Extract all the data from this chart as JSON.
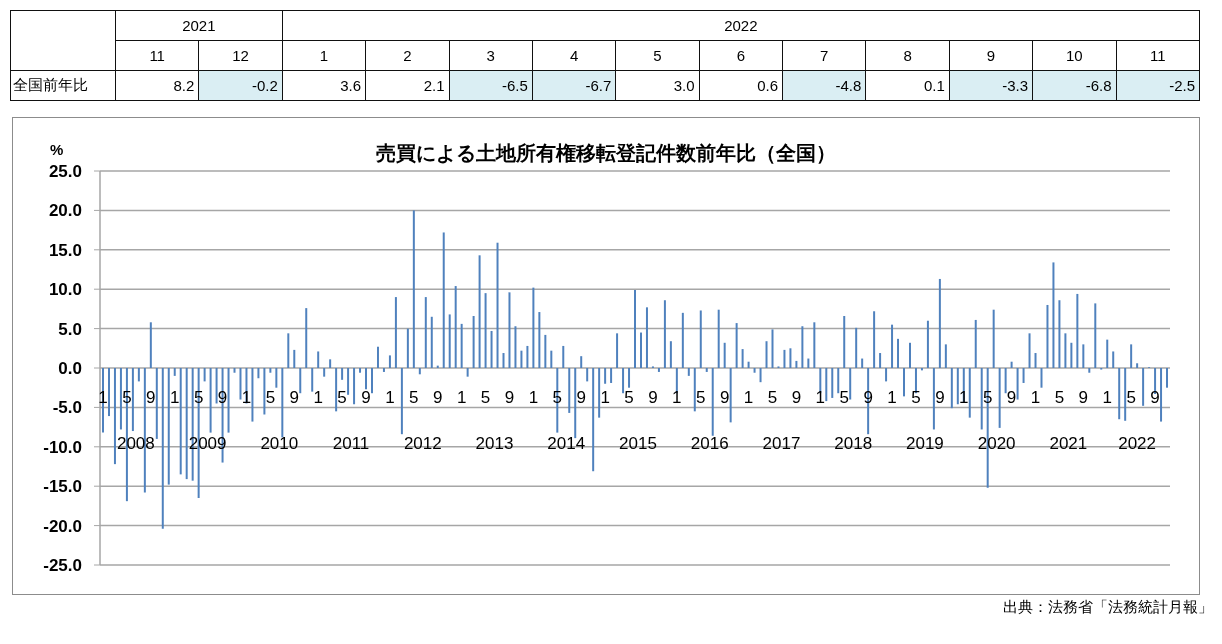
{
  "chart_data": [
    {
      "type": "heatmap",
      "categories": [
        "11",
        "12",
        "1",
        "2",
        "3",
        "4",
        "5",
        "6",
        "7",
        "8",
        "9",
        "10",
        "11"
      ],
      "annotations": [
        "2021",
        "2022"
      ],
      "y_categories": [
        "全国前年比"
      ],
      "cells": [
        [
          8.2,
          -0.2,
          3.6,
          2.1,
          -6.5,
          -6.7,
          3.0,
          0.6,
          -4.8,
          0.1,
          -3.3,
          -6.8,
          -2.5
        ]
      ],
      "cell_labels": [
        [
          "8.2",
          "-0.2",
          "3.6",
          "2.1",
          "-6.5",
          "-6.7",
          "3.0",
          "0.6",
          "-4.8",
          "0.1",
          "-3.3",
          "-6.8",
          "-2.5"
        ]
      ]
    },
    {
      "type": "bar",
      "title": "売買による土地所有権移転登記件数前年比（全国）",
      "ylabel": "%",
      "annotations": [
        "出典：法務省「法務統計月報」"
      ],
      "x": [
        "2008-01",
        "2008-02",
        "2008-03",
        "2008-04",
        "2008-05",
        "2008-06",
        "2008-07",
        "2008-08",
        "2008-09",
        "2008-10",
        "2008-11",
        "2008-12",
        "2009-01",
        "2009-02",
        "2009-03",
        "2009-04",
        "2009-05",
        "2009-06",
        "2009-07",
        "2009-08",
        "2009-09",
        "2009-10",
        "2009-11",
        "2009-12",
        "2010-01",
        "2010-02",
        "2010-03",
        "2010-04",
        "2010-05",
        "2010-06",
        "2010-07",
        "2010-08",
        "2010-09",
        "2010-10",
        "2010-11",
        "2010-12",
        "2011-01",
        "2011-02",
        "2011-03",
        "2011-04",
        "2011-05",
        "2011-06",
        "2011-07",
        "2011-08",
        "2011-09",
        "2011-10",
        "2011-11",
        "2011-12",
        "2012-01",
        "2012-02",
        "2012-03",
        "2012-04",
        "2012-05",
        "2012-06",
        "2012-07",
        "2012-08",
        "2012-09",
        "2012-10",
        "2012-11",
        "2012-12",
        "2013-01",
        "2013-02",
        "2013-03",
        "2013-04",
        "2013-05",
        "2013-06",
        "2013-07",
        "2013-08",
        "2013-09",
        "2013-10",
        "2013-11",
        "2013-12",
        "2014-01",
        "2014-02",
        "2014-03",
        "2014-04",
        "2014-05",
        "2014-06",
        "2014-07",
        "2014-08",
        "2014-09",
        "2014-10",
        "2014-11",
        "2014-12",
        "2015-01",
        "2015-02",
        "2015-03",
        "2015-04",
        "2015-05",
        "2015-06",
        "2015-07",
        "2015-08",
        "2015-09",
        "2015-10",
        "2015-11",
        "2015-12",
        "2016-01",
        "2016-02",
        "2016-03",
        "2016-04",
        "2016-05",
        "2016-06",
        "2016-07",
        "2016-08",
        "2016-09",
        "2016-10",
        "2016-11",
        "2016-12",
        "2017-01",
        "2017-02",
        "2017-03",
        "2017-04",
        "2017-05",
        "2017-06",
        "2017-07",
        "2017-08",
        "2017-09",
        "2017-10",
        "2017-11",
        "2017-12",
        "2018-01",
        "2018-02",
        "2018-03",
        "2018-04",
        "2018-05",
        "2018-06",
        "2018-07",
        "2018-08",
        "2018-09",
        "2018-10",
        "2018-11",
        "2018-12",
        "2019-01",
        "2019-02",
        "2019-03",
        "2019-04",
        "2019-05",
        "2019-06",
        "2019-07",
        "2019-08",
        "2019-09",
        "2019-10",
        "2019-11",
        "2019-12",
        "2020-01",
        "2020-02",
        "2020-03",
        "2020-04",
        "2020-05",
        "2020-06",
        "2020-07",
        "2020-08",
        "2020-09",
        "2020-10",
        "2020-11",
        "2020-12",
        "2021-01",
        "2021-02",
        "2021-03",
        "2021-04",
        "2021-05",
        "2021-06",
        "2021-07",
        "2021-08",
        "2021-09",
        "2021-10",
        "2021-11",
        "2021-12",
        "2022-01",
        "2022-02",
        "2022-03",
        "2022-04",
        "2022-05",
        "2022-06",
        "2022-07",
        "2022-08",
        "2022-09",
        "2022-10",
        "2022-11"
      ],
      "series": [
        {
          "color": "#4f81bd",
          "values": [
            -8.2,
            -6.1,
            -12.2,
            -7.8,
            -16.9,
            -8.0,
            -1.7,
            -15.8,
            5.8,
            -9.0,
            -20.4,
            -14.8,
            -1.0,
            -13.5,
            -14.1,
            -14.3,
            -16.5,
            -1.7,
            -8.2,
            -4.5,
            -12.0,
            -8.2,
            -0.6,
            -4.0,
            -4.5,
            -6.8,
            -1.3,
            -5.9,
            -0.6,
            -2.5,
            -8.8,
            4.4,
            2.3,
            -3.2,
            7.6,
            -3.0,
            2.1,
            -1.1,
            1.1,
            -5.5,
            -1.5,
            -3.4,
            -4.6,
            -0.6,
            -2.7,
            -3.2,
            2.7,
            -0.5,
            1.6,
            9.0,
            -8.4,
            5.0,
            20.0,
            -0.8,
            9.0,
            6.5,
            0.3,
            17.2,
            6.8,
            10.4,
            5.6,
            -1.1,
            6.6,
            14.3,
            9.5,
            4.7,
            15.9,
            1.9,
            9.6,
            5.3,
            2.2,
            2.8,
            10.2,
            7.1,
            4.2,
            2.2,
            -8.2,
            2.8,
            -5.7,
            -8.9,
            1.5,
            -1.7,
            -13.1,
            -6.3,
            -2.0,
            -1.9,
            4.4,
            -3.2,
            -2.5,
            9.9,
            4.5,
            7.7,
            0.2,
            -0.5,
            8.6,
            3.4,
            -3.2,
            7.0,
            -1.0,
            -5.5,
            7.3,
            -0.5,
            -8.6,
            7.4,
            3.2,
            -6.9,
            5.7,
            2.4,
            0.8,
            -0.6,
            -1.8,
            3.4,
            4.9,
            0.2,
            2.3,
            2.5,
            0.9,
            5.3,
            1.2,
            5.8,
            -3.2,
            -4.2,
            -3.8,
            -3.2,
            6.6,
            -4.0,
            5.1,
            1.2,
            -8.4,
            7.2,
            1.9,
            -1.7,
            5.5,
            3.7,
            -3.6,
            3.2,
            -3.2,
            -0.3,
            6.0,
            -7.8,
            11.3,
            3.0,
            -5.1,
            -4.6,
            -4.4,
            -6.3,
            6.1,
            -7.8,
            -15.2,
            7.4,
            -7.6,
            -3.2,
            0.8,
            -4.0,
            -1.9,
            4.4,
            1.9,
            -2.5,
            8.0,
            13.4,
            8.6,
            4.4,
            3.2,
            9.4,
            3.0,
            -0.6,
            8.2,
            -0.2,
            3.6,
            2.1,
            -6.5,
            -6.7,
            3.0,
            0.6,
            -4.8,
            0.1,
            -3.3,
            -6.8,
            -2.5
          ]
        }
      ],
      "xlim": [
        "2008-01-01",
        "2022-12-01"
      ],
      "xticks": [
        {
          "value": "2008-01",
          "label": "1"
        },
        {
          "value": "2008-05",
          "label": "5"
        },
        {
          "value": "2008-09",
          "label": "9"
        },
        {
          "value": "2009-01",
          "label": "1"
        },
        {
          "value": "2009-05",
          "label": "5"
        },
        {
          "value": "2009-09",
          "label": "9"
        },
        {
          "value": "2010-01",
          "label": "1"
        },
        {
          "value": "2010-05",
          "label": "5"
        },
        {
          "value": "2010-09",
          "label": "9"
        },
        {
          "value": "2011-01",
          "label": "1"
        },
        {
          "value": "2011-05",
          "label": "5"
        },
        {
          "value": "2011-09",
          "label": "9"
        },
        {
          "value": "2012-01",
          "label": "1"
        },
        {
          "value": "2012-05",
          "label": "5"
        },
        {
          "value": "2012-09",
          "label": "9"
        },
        {
          "value": "2013-01",
          "label": "1"
        },
        {
          "value": "2013-05",
          "label": "5"
        },
        {
          "value": "2013-09",
          "label": "9"
        },
        {
          "value": "2014-01",
          "label": "1"
        },
        {
          "value": "2014-05",
          "label": "5"
        },
        {
          "value": "2014-09",
          "label": "9"
        },
        {
          "value": "2015-01",
          "label": "1"
        },
        {
          "value": "2015-05",
          "label": "5"
        },
        {
          "value": "2015-09",
          "label": "9"
        },
        {
          "value": "2016-01",
          "label": "1"
        },
        {
          "value": "2016-05",
          "label": "5"
        },
        {
          "value": "2016-09",
          "label": "9"
        },
        {
          "value": "2017-01",
          "label": "1"
        },
        {
          "value": "2017-05",
          "label": "5"
        },
        {
          "value": "2017-09",
          "label": "9"
        },
        {
          "value": "2018-01",
          "label": "1"
        },
        {
          "value": "2018-05",
          "label": "5"
        },
        {
          "value": "2018-09",
          "label": "9"
        },
        {
          "value": "2019-01",
          "label": "1"
        },
        {
          "value": "2019-05",
          "label": "5"
        },
        {
          "value": "2019-09",
          "label": "9"
        },
        {
          "value": "2020-01",
          "label": "1"
        },
        {
          "value": "2020-05",
          "label": "5"
        },
        {
          "value": "2020-09",
          "label": "9"
        },
        {
          "value": "2021-01",
          "label": "1"
        },
        {
          "value": "2021-05",
          "label": "5"
        },
        {
          "value": "2021-09",
          "label": "9"
        },
        {
          "value": "2022-01",
          "label": "1"
        },
        {
          "value": "2022-05",
          "label": "5"
        },
        {
          "value": "2022-09",
          "label": "9"
        }
      ],
      "x2lim": [
        "2008-01-01",
        "2022-12-01"
      ],
      "x2ticks": [
        {
          "value": "2008-07-01",
          "label": "2008"
        },
        {
          "value": "2009-07-01",
          "label": "2009"
        },
        {
          "value": "2010-07-01",
          "label": "2010"
        },
        {
          "value": "2011-07-01",
          "label": "2011"
        },
        {
          "value": "2012-07-01",
          "label": "2012"
        },
        {
          "value": "2013-07-01",
          "label": "2013"
        },
        {
          "value": "2014-07-01",
          "label": "2014"
        },
        {
          "value": "2015-07-01",
          "label": "2015"
        },
        {
          "value": "2016-07-01",
          "label": "2016"
        },
        {
          "value": "2017-07-01",
          "label": "2017"
        },
        {
          "value": "2018-07-01",
          "label": "2018"
        },
        {
          "value": "2019-07-01",
          "label": "2019"
        },
        {
          "value": "2020-07-01",
          "label": "2020"
        },
        {
          "value": "2021-07-01",
          "label": "2021"
        },
        {
          "value": "2022-06-16",
          "label": "2022"
        }
      ],
      "ylim": [
        -25,
        25
      ],
      "yticks": [
        {
          "value": 25,
          "label": "25.0"
        },
        {
          "value": 20,
          "label": "20.0"
        },
        {
          "value": 15,
          "label": "15.0"
        },
        {
          "value": 10,
          "label": "10.0"
        },
        {
          "value": 5,
          "label": "5.0"
        },
        {
          "value": 0,
          "label": "0.0"
        },
        {
          "value": -5,
          "label": "-5.0"
        },
        {
          "value": -10,
          "label": "-10.0"
        },
        {
          "value": -15,
          "label": "-15.0"
        },
        {
          "value": -20,
          "label": "-20.0"
        },
        {
          "value": -25,
          "label": "-25.0"
        }
      ],
      "grid": "y"
    }
  ]
}
